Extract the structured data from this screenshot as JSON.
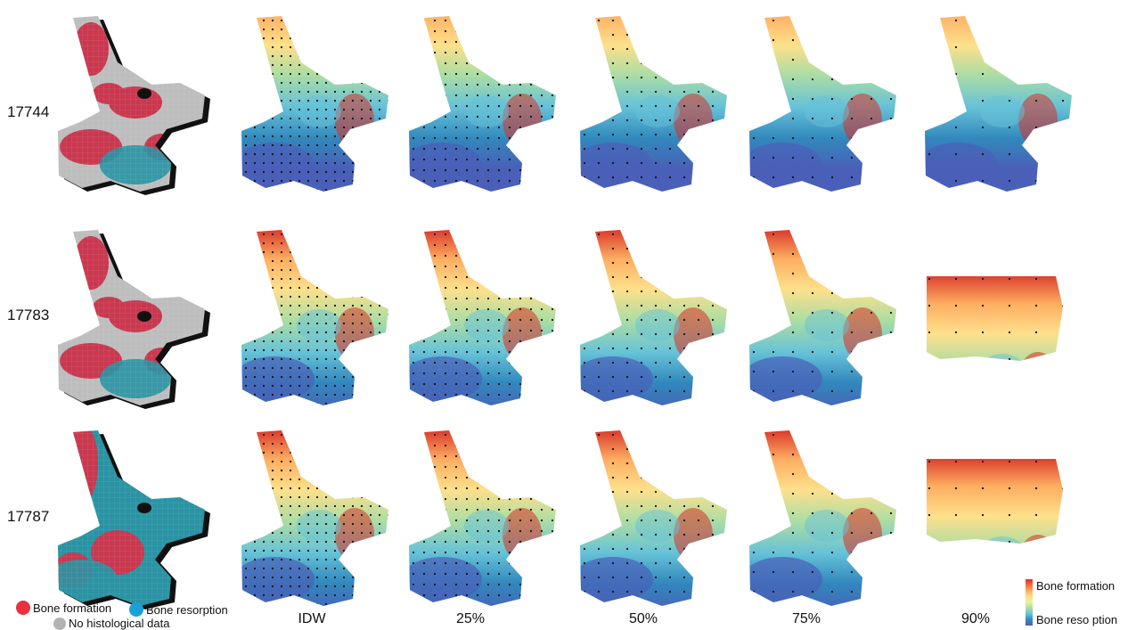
{
  "rows": [
    {
      "id": "17744",
      "label": "17744"
    },
    {
      "id": "17783",
      "label": "17783"
    },
    {
      "id": "17787",
      "label": "17787"
    }
  ],
  "columns": [
    "IDW",
    "25%",
    "50%",
    "75%",
    "90%"
  ],
  "legend": {
    "formation": {
      "label": "Bone formation",
      "color": "#e8313f"
    },
    "resorption": {
      "label": "Bone resorption",
      "color": "#1aa0d8"
    },
    "none": {
      "label": "No histological data",
      "color": "#b3b3b3"
    }
  },
  "colorbar": {
    "top_label": "Bone formation",
    "bottom_label": "Bone reso ption",
    "colors": [
      "#d73027",
      "#f46d43",
      "#fdae61",
      "#fee08b",
      "#e6f598",
      "#abdda4",
      "#66c2d8",
      "#3288bd",
      "#4a5fb8"
    ]
  },
  "histology_colors": {
    "formation": "#c9384f",
    "resorption": "#2a93a3",
    "none": "#bdbdbd",
    "outline": "#111111"
  }
}
